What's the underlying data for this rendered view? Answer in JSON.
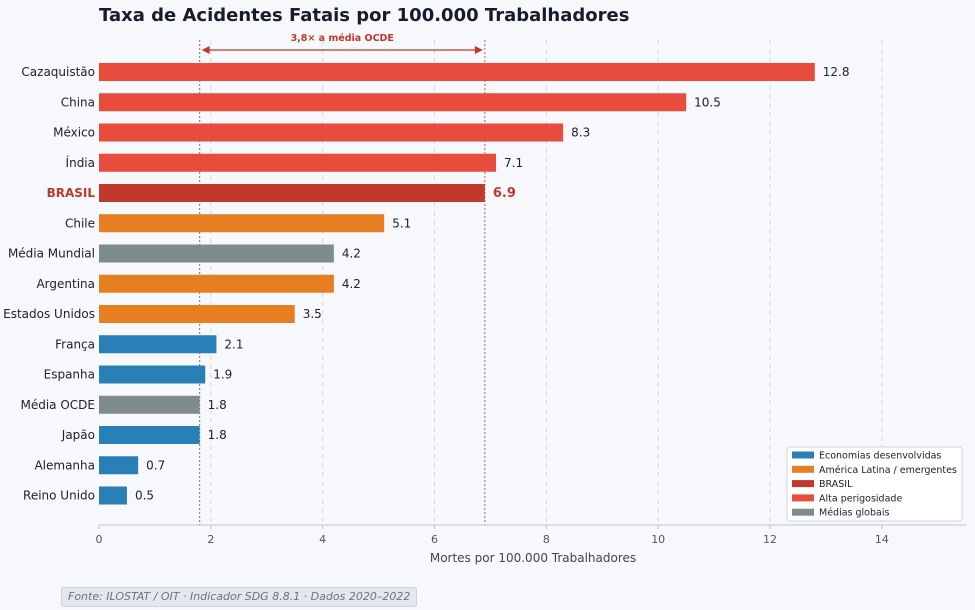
{
  "chart_data": {
    "type": "bar",
    "orientation": "horizontal",
    "title": "Taxa de Acidentes Fatais por 100.000 Trabalhadores",
    "xlabel": "Mortes por 100.000 Trabalhadores",
    "ylabel": "",
    "xlim": [
      0,
      15.5
    ],
    "xticks": [
      0,
      2,
      4,
      6,
      8,
      10,
      12,
      14
    ],
    "grid": "vertical dashed",
    "categories": [
      "Cazaquistão",
      "China",
      "México",
      "Índia",
      "BRASIL",
      "Chile",
      "Média Mundial",
      "Argentina",
      "Estados Unidos",
      "França",
      "Espanha",
      "Média OCDE",
      "Japão",
      "Alemanha",
      "Reino Unido"
    ],
    "values": [
      12.8,
      10.5,
      8.3,
      7.1,
      6.9,
      5.1,
      4.2,
      4.2,
      3.5,
      2.1,
      1.9,
      1.8,
      1.8,
      0.7,
      0.5
    ],
    "value_labels": [
      "12.8",
      "10.5",
      "8.3",
      "7.1",
      "6.9",
      "5.1",
      "4.2",
      "4.2",
      "3.5",
      "2.1",
      "1.9",
      "1.8",
      "1.8",
      "0.7",
      "0.5"
    ],
    "groups": [
      "Alta perigosidade",
      "Alta perigosidade",
      "Alta perigosidade",
      "Alta perigosidade",
      "BRASIL",
      "América Latina / emergentes",
      "Médias globais",
      "América Latina / emergentes",
      "América Latina / emergentes",
      "Economias desenvolvidas",
      "Economias desenvolvidas",
      "Médias globais",
      "Economias desenvolvidas",
      "Economias desenvolvidas",
      "Economias desenvolvidas"
    ],
    "legend": {
      "position": "bottom-right",
      "entries": [
        {
          "label": "Economias desenvolvidas",
          "color": "#2980b9"
        },
        {
          "label": "América Latina / emergentes",
          "color": "#e67e22"
        },
        {
          "label": "BRASIL",
          "color": "#c0392b"
        },
        {
          "label": "Alta perigosidade",
          "color": "#e74c3c"
        },
        {
          "label": "Médias globais",
          "color": "#7f8c8d"
        }
      ]
    },
    "reference_lines": [
      {
        "name": "Média OCDE",
        "value": 1.8,
        "color": "#555555"
      },
      {
        "name": "BRASIL",
        "value": 6.9,
        "color": "#c0392b"
      }
    ],
    "annotation": {
      "text": "3,8× a média OCDE",
      "from": 1.8,
      "to": 6.9,
      "color": "#c0392b"
    }
  },
  "source_note": "Fonte: ILOSTAT / OIT · Indicador SDG 8.8.1 · Dados 2020–2022"
}
